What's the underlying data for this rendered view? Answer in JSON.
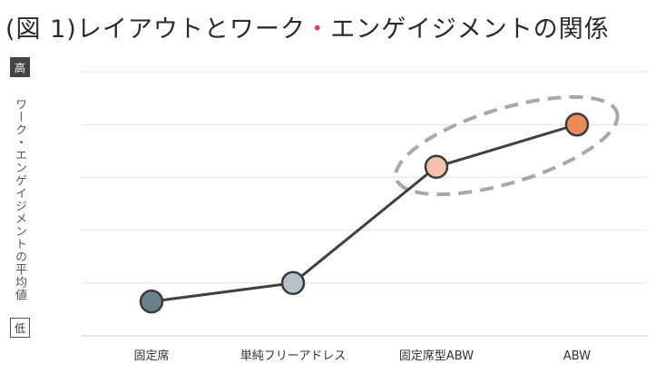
{
  "title": {
    "before": "(図 1)レイアウトとワーク",
    "dot": "・",
    "after": "エンゲイジメントの関係"
  },
  "y_axis": {
    "high_label": "高",
    "low_label": "低"
  },
  "chart_data": {
    "type": "line",
    "categories": [
      "固定席",
      "単純フリーアドレス",
      "固定席型ABW",
      "ABW"
    ],
    "values": [
      0.65,
      1.0,
      3.2,
      4.0
    ],
    "ylabel": "ワーク・エンゲイジメントの平均値",
    "ylim": [
      0,
      5
    ],
    "grid": true,
    "highlighted_categories": [
      "固定席型ABW",
      "ABW"
    ],
    "colors": [
      "#6a818e",
      "#b3c2cb",
      "#f2c3ac",
      "#ee8b5a"
    ],
    "line_color": "#404040",
    "highlight_color": "#a8a8a8"
  }
}
